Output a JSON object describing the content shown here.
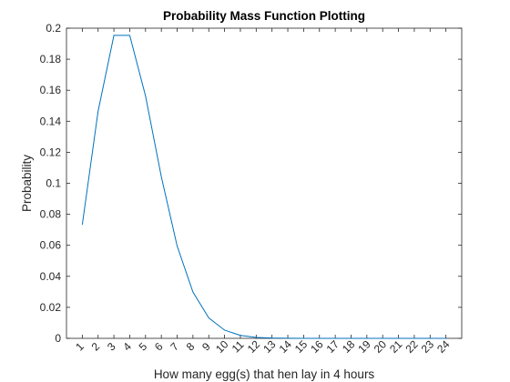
{
  "chart_data": {
    "type": "line",
    "title": "Probability Mass Function Plotting",
    "xlabel": "How many egg(s) that hen lay in 4 hours",
    "ylabel": "Probability",
    "xlim": [
      0,
      25
    ],
    "ylim": [
      0,
      0.2
    ],
    "xticks": [
      "1",
      "2",
      "3",
      "4",
      "5",
      "6",
      "7",
      "8",
      "9",
      "10",
      "11",
      "12",
      "13",
      "14",
      "15",
      "16",
      "17",
      "18",
      "19",
      "20",
      "21",
      "22",
      "23",
      "24"
    ],
    "yticks": [
      "0",
      "0.02",
      "0.04",
      "0.06",
      "0.08",
      "0.1",
      "0.12",
      "0.14",
      "0.16",
      "0.18",
      "0.2"
    ],
    "grid": false,
    "colors": {
      "line": "#0072BD",
      "axes": "#262626"
    },
    "series": [
      {
        "x": [
          1,
          2,
          3,
          4,
          5,
          6,
          7,
          8,
          9,
          10,
          11,
          12,
          13,
          14,
          15,
          16,
          17,
          18,
          19,
          20,
          21,
          22,
          23,
          24
        ],
        "values": [
          0.0733,
          0.1465,
          0.1954,
          0.1954,
          0.1563,
          0.1042,
          0.0595,
          0.0298,
          0.0132,
          0.0053,
          0.0019,
          0.0006,
          0.0002,
          0.0001,
          0,
          0,
          0,
          0,
          0,
          0,
          0,
          0,
          0,
          0
        ]
      }
    ]
  }
}
